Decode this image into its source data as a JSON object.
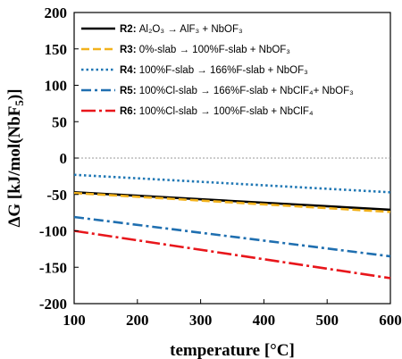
{
  "chart_data": {
    "type": "line",
    "title": "",
    "xlabel": "temperature [°C]",
    "ylabel": "ΔG [kJ/mol(NbF5)]",
    "xlim": [
      100,
      600
    ],
    "ylim": [
      -200,
      200
    ],
    "xticks": [
      100,
      200,
      300,
      400,
      500,
      600
    ],
    "yticks": [
      -200,
      -150,
      -100,
      -50,
      0,
      50,
      100,
      150,
      200
    ],
    "zero_reference_line": true,
    "grid": false,
    "legend_position": "top",
    "series": [
      {
        "name": "R2: Al2O3 → AlF3 + NbOF3",
        "id": "R2",
        "desc": "Al₂O₃ → AlF₃ + NbOF₃",
        "color": "#000000",
        "dash": "solid",
        "x": [
          100,
          600
        ],
        "y": [
          -47,
          -71
        ]
      },
      {
        "name": "R3: 0%-slab → 100%F-slab + NbOF3",
        "id": "R3",
        "desc": "0%-slab →  100%F-slab + NbOF₃",
        "color": "#f2b21c",
        "dash": "dash",
        "x": [
          100,
          600
        ],
        "y": [
          -48,
          -74
        ]
      },
      {
        "name": "R4: 100%F-slab → 166%F-slab + NbOF3",
        "id": "R4",
        "desc": "100%F-slab →  166%F-slab + NbOF₃",
        "color": "#1f77b4",
        "dash": "dot",
        "x": [
          100,
          600
        ],
        "y": [
          -23,
          -47
        ]
      },
      {
        "name": "R5: 100%Cl-slab → 166%F-slab + NbClF4 + NbOF3",
        "id": "R5",
        "desc": "100%Cl-slab → 166%F-slab + NbClF₄+ NbOF₃",
        "color": "#1f6fb0",
        "dash": "dashdot",
        "x": [
          100,
          600
        ],
        "y": [
          -81,
          -135
        ]
      },
      {
        "name": "R6: 100%Cl-slab → 100%F-slab + NbClF4",
        "id": "R6",
        "desc": "100%Cl-slab →  100%F-slab + NbClF₄",
        "color": "#e8161b",
        "dash": "dashdot-long",
        "x": [
          100,
          600
        ],
        "y": [
          -100,
          -165
        ]
      }
    ]
  }
}
